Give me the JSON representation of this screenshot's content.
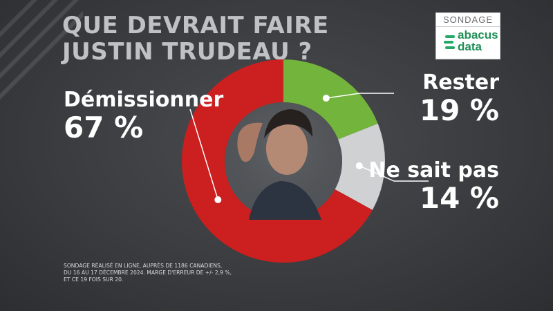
{
  "title_lines": [
    "QUE DEVRAIT FAIRE",
    "JUSTIN TRUDEAU ?"
  ],
  "brand": {
    "tag": "SONDAGE",
    "logo_line1": "abacus",
    "logo_line2": "data"
  },
  "chart_data": {
    "type": "pie",
    "title": "QUE DEVRAIT FAIRE JUSTIN TRUDEAU ?",
    "categories": [
      "Rester",
      "Ne sait pas",
      "Démissionner"
    ],
    "values": [
      19,
      14,
      67
    ],
    "value_labels": [
      "19 %",
      "14 %",
      "67 %"
    ],
    "colors": [
      "#73b43c",
      "#cfd1d3",
      "#cc1f1f"
    ],
    "donut": true
  },
  "footnote": [
    "SONDAGE RÉALISÉ EN LIGNE, AUPRÈS DE 1186 CANADIENS,",
    "DU 16 AU 17 DÉCEMBRE 2024. MARGE D'ERREUR DE +/- 2,9 %,",
    "ET CE 19 FOIS SUR 20."
  ]
}
